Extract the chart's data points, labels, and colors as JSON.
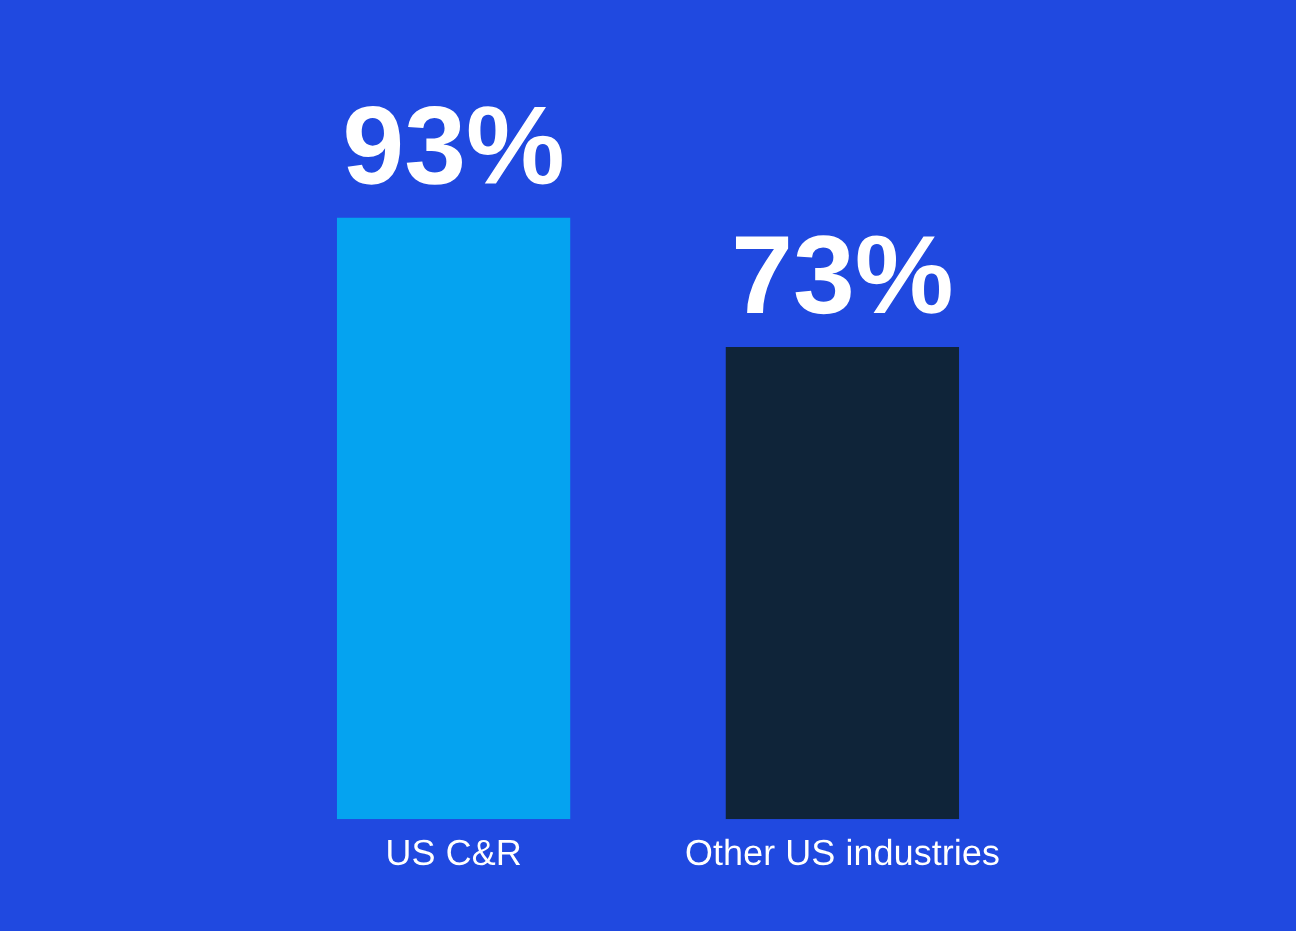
{
  "chart_data": {
    "type": "bar",
    "categories": [
      "US C&R",
      "Other US industries"
    ],
    "values": [
      93,
      73
    ],
    "colors": [
      "#05a3f0",
      "#0f2439"
    ],
    "value_labels": [
      "93%",
      "73%"
    ]
  }
}
